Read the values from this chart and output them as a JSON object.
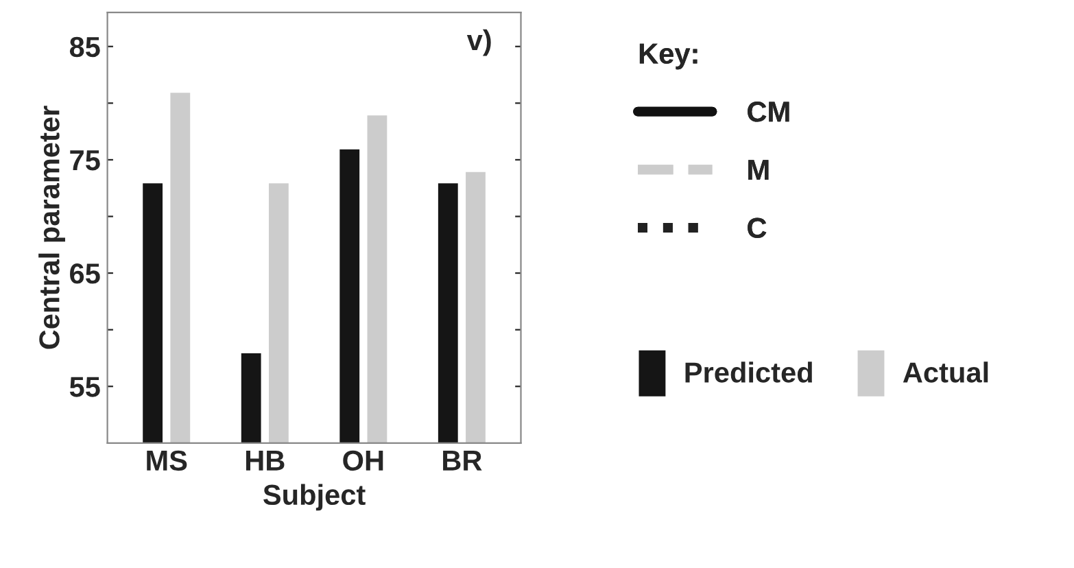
{
  "chart_data": {
    "type": "bar",
    "xlabel": "Subject",
    "ylabel": "Central parameter",
    "legend_title": "Key:",
    "categories": [
      "MS",
      "HB",
      "OH",
      "BR"
    ],
    "series": [
      {
        "name": "CM",
        "type": "line",
        "color": "#111111",
        "line_style": "solid",
        "values": [
          null,
          null,
          null,
          null
        ]
      },
      {
        "name": "M",
        "type": "line",
        "color": "#cccccc",
        "line_style": "dashed",
        "values": [
          null,
          null,
          null,
          null
        ]
      },
      {
        "name": "C",
        "type": "line",
        "color": "#222222",
        "line_style": "dotted",
        "values": [
          null,
          null,
          null,
          null
        ]
      },
      {
        "name": "Predicted",
        "color": "#151515",
        "values": [
          73,
          58,
          76,
          73
        ]
      },
      {
        "name": "Actual",
        "color": "#cccccc",
        "values": [
          81,
          73,
          79,
          74
        ]
      }
    ],
    "ylim": [
      50,
      88
    ],
    "yticks": [
      55,
      {
        "value": 60,
        "label": null
      },
      65,
      {
        "value": 70,
        "label": null
      },
      75,
      {
        "value": 80,
        "label": null
      },
      85
    ],
    "annotations": [
      "v)"
    ],
    "grid": false,
    "legend": "right"
  }
}
